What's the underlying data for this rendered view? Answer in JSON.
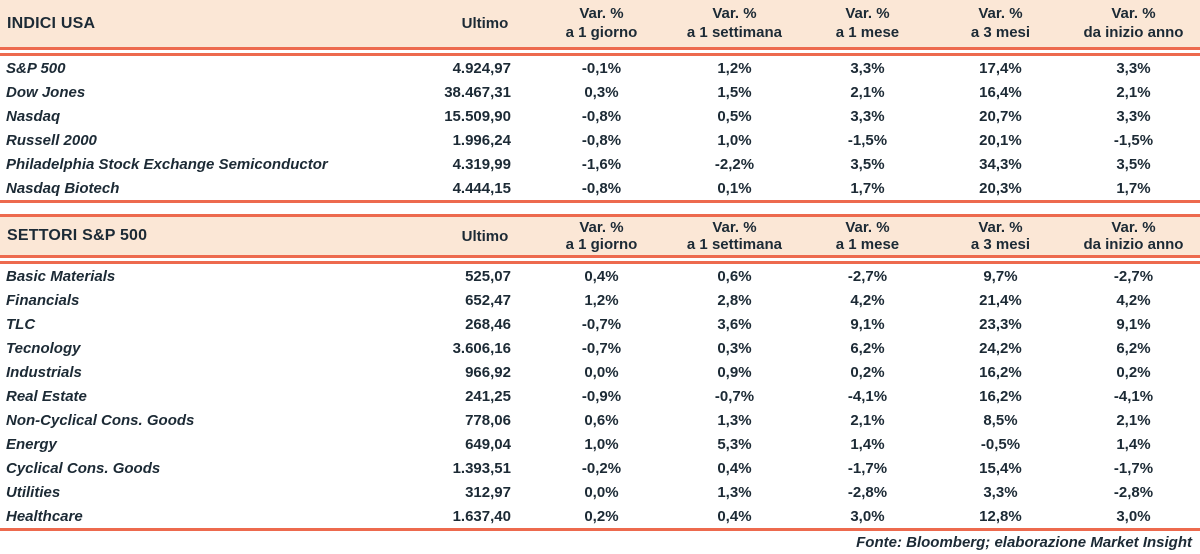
{
  "colors": {
    "header_band_bg": "#fbe7d6",
    "accent_line": "#ed6a4e",
    "text": "#1c2a35"
  },
  "columns": {
    "ultimo_label": "Ultimo",
    "var_label": "Var. %",
    "periods": [
      "a 1 giorno",
      "a 1 settimana",
      "a 1 mese",
      "a 3 mesi",
      "da inizio anno"
    ]
  },
  "tables": [
    {
      "title": "INDICI USA",
      "rows": [
        {
          "name": "S&P 500",
          "ultimo": "4.924,97",
          "vars": [
            "-0,1%",
            "1,2%",
            "3,3%",
            "17,4%",
            "3,3%"
          ]
        },
        {
          "name": "Dow Jones",
          "ultimo": "38.467,31",
          "vars": [
            "0,3%",
            "1,5%",
            "2,1%",
            "16,4%",
            "2,1%"
          ]
        },
        {
          "name": "Nasdaq",
          "ultimo": "15.509,90",
          "vars": [
            "-0,8%",
            "0,5%",
            "3,3%",
            "20,7%",
            "3,3%"
          ]
        },
        {
          "name": "Russell 2000",
          "ultimo": "1.996,24",
          "vars": [
            "-0,8%",
            "1,0%",
            "-1,5%",
            "20,1%",
            "-1,5%"
          ]
        },
        {
          "name": "Philadelphia Stock Exchange Semiconductor",
          "ultimo": "4.319,99",
          "vars": [
            "-1,6%",
            "-2,2%",
            "3,5%",
            "34,3%",
            "3,5%"
          ]
        },
        {
          "name": "Nasdaq Biotech",
          "ultimo": "4.444,15",
          "vars": [
            "-0,8%",
            "0,1%",
            "1,7%",
            "20,3%",
            "1,7%"
          ]
        }
      ]
    },
    {
      "title": "SETTORI S&P 500",
      "rows": [
        {
          "name": "Basic Materials",
          "ultimo": "525,07",
          "vars": [
            "0,4%",
            "0,6%",
            "-2,7%",
            "9,7%",
            "-2,7%"
          ]
        },
        {
          "name": "Financials",
          "ultimo": "652,47",
          "vars": [
            "1,2%",
            "2,8%",
            "4,2%",
            "21,4%",
            "4,2%"
          ]
        },
        {
          "name": "TLC",
          "ultimo": "268,46",
          "vars": [
            "-0,7%",
            "3,6%",
            "9,1%",
            "23,3%",
            "9,1%"
          ]
        },
        {
          "name": "Tecnology",
          "ultimo": "3.606,16",
          "vars": [
            "-0,7%",
            "0,3%",
            "6,2%",
            "24,2%",
            "6,2%"
          ]
        },
        {
          "name": "Industrials",
          "ultimo": "966,92",
          "vars": [
            "0,0%",
            "0,9%",
            "0,2%",
            "16,2%",
            "0,2%"
          ]
        },
        {
          "name": "Real Estate",
          "ultimo": "241,25",
          "vars": [
            "-0,9%",
            "-0,7%",
            "-4,1%",
            "16,2%",
            "-4,1%"
          ]
        },
        {
          "name": "Non-Cyclical Cons. Goods",
          "ultimo": "778,06",
          "vars": [
            "0,6%",
            "1,3%",
            "2,1%",
            "8,5%",
            "2,1%"
          ]
        },
        {
          "name": "Energy",
          "ultimo": "649,04",
          "vars": [
            "1,0%",
            "5,3%",
            "1,4%",
            "-0,5%",
            "1,4%"
          ]
        },
        {
          "name": "Cyclical Cons. Goods",
          "ultimo": "1.393,51",
          "vars": [
            "-0,2%",
            "0,4%",
            "-1,7%",
            "15,4%",
            "-1,7%"
          ]
        },
        {
          "name": "Utilities",
          "ultimo": "312,97",
          "vars": [
            "0,0%",
            "1,3%",
            "-2,8%",
            "3,3%",
            "-2,8%"
          ]
        },
        {
          "name": "Healthcare",
          "ultimo": "1.637,40",
          "vars": [
            "0,2%",
            "0,4%",
            "3,0%",
            "12,8%",
            "3,0%"
          ]
        }
      ]
    }
  ],
  "footer": {
    "source_label": "Fonte: Bloomberg; elaborazione Market Insight"
  }
}
